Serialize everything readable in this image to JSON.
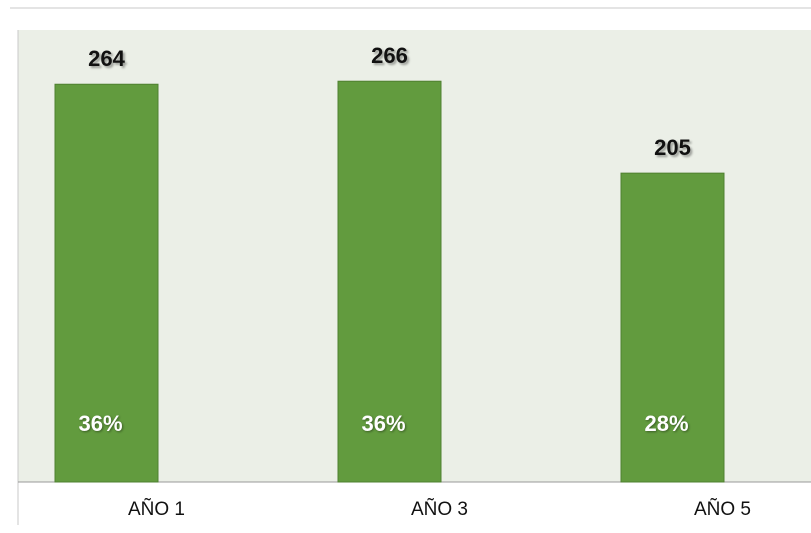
{
  "chart_data": {
    "type": "bar",
    "categories": [
      "AÑO 1",
      "AÑO 3",
      "AÑO 5"
    ],
    "values": [
      264,
      266,
      205
    ],
    "percent_values": [
      36,
      36,
      28
    ],
    "percent_labels": [
      "36%",
      "36%",
      "28%"
    ],
    "color": "#629b3e",
    "ylim": [
      0,
      300
    ]
  }
}
